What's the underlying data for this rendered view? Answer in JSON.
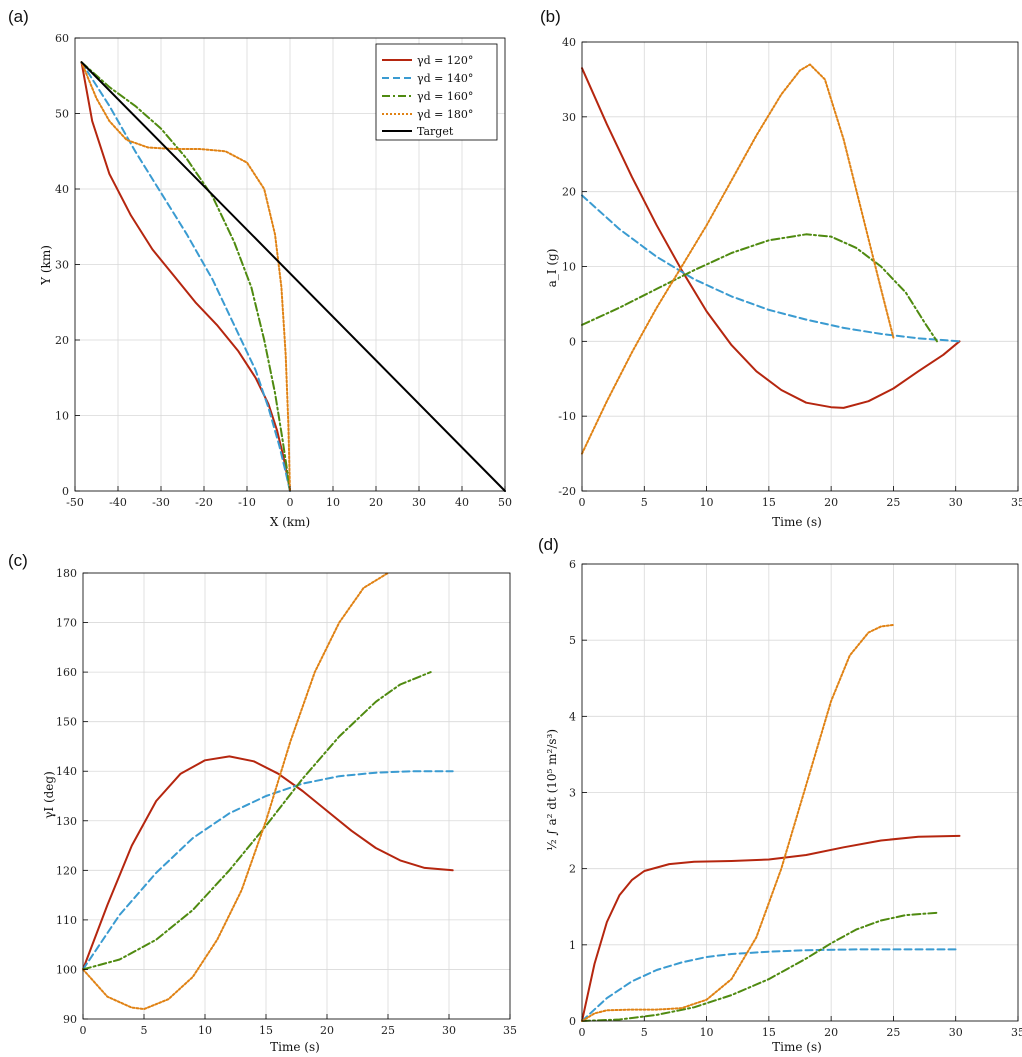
{
  "series_styles": [
    {
      "key": "g120",
      "color": "#b5260f",
      "dash": ""
    },
    {
      "key": "g140",
      "color": "#3a9bd1",
      "dash": "7,4"
    },
    {
      "key": "g160",
      "color": "#4f8a10",
      "dash": "8,3,2,3"
    },
    {
      "key": "g180",
      "color": "#e08214",
      "dash": "2,2"
    },
    {
      "key": "target",
      "color": "#000000",
      "dash": ""
    }
  ],
  "chart_data": [
    {
      "panel": "(a)",
      "type": "line",
      "xlabel": "X (km)",
      "ylabel": "Y (km)",
      "xlim": [
        -50,
        50
      ],
      "ylim": [
        0,
        60
      ],
      "xticks": [
        -50,
        -40,
        -30,
        -20,
        -10,
        0,
        10,
        20,
        30,
        40,
        50
      ],
      "yticks": [
        0,
        10,
        20,
        30,
        40,
        50,
        60
      ],
      "grid": true,
      "legend": {
        "placement": "top-right",
        "entries": [
          "γd = 120°",
          "γd = 140°",
          "γd = 160°",
          "γd = 180°",
          "Target"
        ]
      },
      "series": [
        {
          "name": "γd = 120°",
          "style": "g120",
          "points": [
            [
              -48.5,
              56.8
            ],
            [
              -46,
              49
            ],
            [
              -42,
              42
            ],
            [
              -37,
              36.5
            ],
            [
              -32,
              32
            ],
            [
              -27,
              28.5
            ],
            [
              -22,
              25
            ],
            [
              -17,
              22
            ],
            [
              -12,
              18.5
            ],
            [
              -8,
              15
            ],
            [
              -5,
              11.5
            ],
            [
              -3,
              8
            ],
            [
              -1.5,
              4.5
            ],
            [
              -0.3,
              1
            ],
            [
              0,
              0
            ]
          ]
        },
        {
          "name": "γd = 140°",
          "style": "g140",
          "points": [
            [
              -48.5,
              56.8
            ],
            [
              -42,
              51
            ],
            [
              -36,
              45
            ],
            [
              -30,
              39.5
            ],
            [
              -24,
              34
            ],
            [
              -18,
              28
            ],
            [
              -13,
              22
            ],
            [
              -8,
              16
            ],
            [
              -5,
              11
            ],
            [
              -2.5,
              6
            ],
            [
              -1,
              2.5
            ],
            [
              0,
              0
            ]
          ]
        },
        {
          "name": "γd = 160°",
          "style": "g160",
          "points": [
            [
              -48.5,
              56.8
            ],
            [
              -42,
              53.5
            ],
            [
              -36,
              51
            ],
            [
              -30,
              48
            ],
            [
              -24,
              44
            ],
            [
              -18,
              39
            ],
            [
              -13,
              33
            ],
            [
              -9,
              27
            ],
            [
              -6,
              20
            ],
            [
              -3.5,
              13
            ],
            [
              -1.8,
              7
            ],
            [
              -0.6,
              2.5
            ],
            [
              0,
              0
            ]
          ]
        },
        {
          "name": "γd = 180°",
          "style": "g180",
          "points": [
            [
              -48.5,
              56.8
            ],
            [
              -45,
              52
            ],
            [
              -42,
              49
            ],
            [
              -38,
              46.5
            ],
            [
              -33,
              45.5
            ],
            [
              -27,
              45.3
            ],
            [
              -21,
              45.3
            ],
            [
              -15,
              45
            ],
            [
              -10,
              43.5
            ],
            [
              -6,
              40
            ],
            [
              -3.5,
              34
            ],
            [
              -2,
              27
            ],
            [
              -1,
              18
            ],
            [
              -0.4,
              9
            ],
            [
              0,
              0
            ]
          ]
        },
        {
          "name": "Target",
          "style": "target",
          "points": [
            [
              -48.5,
              56.8
            ],
            [
              50,
              0
            ]
          ]
        }
      ]
    },
    {
      "panel": "(b)",
      "type": "line",
      "xlabel": "Time (s)",
      "ylabel": "a_I (g)",
      "xlim": [
        0,
        35
      ],
      "ylim": [
        -20,
        40
      ],
      "xticks": [
        0,
        5,
        10,
        15,
        20,
        25,
        30,
        35
      ],
      "yticks": [
        -20,
        -10,
        0,
        10,
        20,
        30,
        40
      ],
      "grid": true,
      "series": [
        {
          "name": "γd = 120°",
          "style": "g120",
          "points": [
            [
              0,
              36.5
            ],
            [
              2,
              29
            ],
            [
              4,
              22
            ],
            [
              6,
              15.5
            ],
            [
              8,
              9.5
            ],
            [
              10,
              4
            ],
            [
              12,
              -0.5
            ],
            [
              14,
              -4
            ],
            [
              16,
              -6.5
            ],
            [
              18,
              -8.2
            ],
            [
              20,
              -8.8
            ],
            [
              21,
              -8.9
            ],
            [
              23,
              -8
            ],
            [
              25,
              -6.3
            ],
            [
              27,
              -4
            ],
            [
              29,
              -1.8
            ],
            [
              30.3,
              0
            ]
          ]
        },
        {
          "name": "γd = 140°",
          "style": "g140",
          "points": [
            [
              0,
              19.5
            ],
            [
              3,
              15
            ],
            [
              6,
              11.3
            ],
            [
              9,
              8.3
            ],
            [
              12,
              6
            ],
            [
              15,
              4.2
            ],
            [
              18,
              2.9
            ],
            [
              21,
              1.8
            ],
            [
              24,
              1
            ],
            [
              27,
              0.4
            ],
            [
              30.3,
              0
            ]
          ]
        },
        {
          "name": "γd = 160°",
          "style": "g160",
          "points": [
            [
              0,
              2.2
            ],
            [
              3,
              4.5
            ],
            [
              6,
              7
            ],
            [
              9,
              9.5
            ],
            [
              12,
              11.8
            ],
            [
              15,
              13.5
            ],
            [
              18,
              14.3
            ],
            [
              20,
              14
            ],
            [
              22,
              12.5
            ],
            [
              24,
              10
            ],
            [
              26,
              6.5
            ],
            [
              27.5,
              2.5
            ],
            [
              28.5,
              0
            ]
          ]
        },
        {
          "name": "γd = 180°",
          "style": "g180",
          "points": [
            [
              0,
              -15
            ],
            [
              2,
              -8
            ],
            [
              4,
              -1.5
            ],
            [
              6,
              4.5
            ],
            [
              8,
              10
            ],
            [
              10,
              15.5
            ],
            [
              12,
              21.5
            ],
            [
              14,
              27.5
            ],
            [
              16,
              33
            ],
            [
              17.5,
              36.2
            ],
            [
              18.3,
              37
            ],
            [
              19.5,
              35
            ],
            [
              21,
              27
            ],
            [
              22.5,
              17
            ],
            [
              24,
              7
            ],
            [
              25,
              0.5
            ]
          ]
        }
      ]
    },
    {
      "panel": "(c)",
      "type": "line",
      "xlabel": "Time (s)",
      "ylabel": "γI (deg)",
      "xlim": [
        0,
        35
      ],
      "ylim": [
        90,
        180
      ],
      "xticks": [
        0,
        5,
        10,
        15,
        20,
        25,
        30,
        35
      ],
      "yticks": [
        90,
        100,
        110,
        120,
        130,
        140,
        150,
        160,
        170,
        180
      ],
      "grid": true,
      "series": [
        {
          "name": "γd = 120°",
          "style": "g120",
          "points": [
            [
              0,
              100
            ],
            [
              2,
              113
            ],
            [
              4,
              125
            ],
            [
              6,
              134
            ],
            [
              8,
              139.5
            ],
            [
              10,
              142.2
            ],
            [
              12,
              143
            ],
            [
              14,
              142
            ],
            [
              16,
              139.5
            ],
            [
              18,
              136
            ],
            [
              20,
              132
            ],
            [
              22,
              128
            ],
            [
              24,
              124.5
            ],
            [
              26,
              122
            ],
            [
              28,
              120.5
            ],
            [
              30.3,
              120
            ]
          ]
        },
        {
          "name": "γd = 140°",
          "style": "g140",
          "points": [
            [
              0,
              100
            ],
            [
              3,
              111
            ],
            [
              6,
              119.5
            ],
            [
              9,
              126.5
            ],
            [
              12,
              131.5
            ],
            [
              15,
              135
            ],
            [
              18,
              137.5
            ],
            [
              21,
              139
            ],
            [
              24,
              139.7
            ],
            [
              27,
              140
            ],
            [
              30.3,
              140
            ]
          ]
        },
        {
          "name": "γd = 160°",
          "style": "g160",
          "points": [
            [
              0,
              100
            ],
            [
              3,
              102
            ],
            [
              6,
              106
            ],
            [
              9,
              112
            ],
            [
              12,
              120
            ],
            [
              15,
              129
            ],
            [
              18,
              138.5
            ],
            [
              21,
              147
            ],
            [
              24,
              154
            ],
            [
              26,
              157.5
            ],
            [
              28.5,
              160
            ]
          ]
        },
        {
          "name": "γd = 180°",
          "style": "g180",
          "points": [
            [
              0,
              100
            ],
            [
              2,
              94.5
            ],
            [
              4,
              92.3
            ],
            [
              5,
              92
            ],
            [
              7,
              94
            ],
            [
              9,
              98.5
            ],
            [
              11,
              106
            ],
            [
              13,
              116
            ],
            [
              15,
              130
            ],
            [
              17,
              146
            ],
            [
              19,
              160
            ],
            [
              21,
              170
            ],
            [
              23,
              177
            ],
            [
              25,
              180
            ]
          ]
        }
      ]
    },
    {
      "panel": "(d)",
      "type": "line",
      "xlabel": "Time (s)",
      "ylabel": "½ ∫ a² dt  (10⁵ m²/s³)",
      "xlim": [
        0,
        35
      ],
      "ylim": [
        0,
        6
      ],
      "xticks": [
        0,
        5,
        10,
        15,
        20,
        25,
        30,
        35
      ],
      "yticks": [
        0,
        1,
        2,
        3,
        4,
        5,
        6
      ],
      "grid": true,
      "series": [
        {
          "name": "γd = 120°",
          "style": "g120",
          "points": [
            [
              0,
              0
            ],
            [
              1,
              0.75
            ],
            [
              2,
              1.3
            ],
            [
              3,
              1.65
            ],
            [
              4,
              1.85
            ],
            [
              5,
              1.97
            ],
            [
              7,
              2.06
            ],
            [
              9,
              2.09
            ],
            [
              12,
              2.1
            ],
            [
              15,
              2.12
            ],
            [
              18,
              2.18
            ],
            [
              21,
              2.28
            ],
            [
              24,
              2.37
            ],
            [
              27,
              2.42
            ],
            [
              30.3,
              2.43
            ]
          ]
        },
        {
          "name": "γd = 140°",
          "style": "g140",
          "points": [
            [
              0,
              0
            ],
            [
              2,
              0.3
            ],
            [
              4,
              0.52
            ],
            [
              6,
              0.67
            ],
            [
              8,
              0.77
            ],
            [
              10,
              0.84
            ],
            [
              12,
              0.88
            ],
            [
              15,
              0.91
            ],
            [
              18,
              0.93
            ],
            [
              22,
              0.94
            ],
            [
              26,
              0.94
            ],
            [
              30.3,
              0.94
            ]
          ]
        },
        {
          "name": "γd = 160°",
          "style": "g160",
          "points": [
            [
              0,
              0
            ],
            [
              3,
              0.02
            ],
            [
              6,
              0.08
            ],
            [
              9,
              0.18
            ],
            [
              12,
              0.34
            ],
            [
              15,
              0.55
            ],
            [
              18,
              0.82
            ],
            [
              20,
              1.02
            ],
            [
              22,
              1.2
            ],
            [
              24,
              1.32
            ],
            [
              26,
              1.39
            ],
            [
              28.5,
              1.42
            ]
          ]
        },
        {
          "name": "γd = 180°",
          "style": "g180",
          "points": [
            [
              0,
              0
            ],
            [
              1,
              0.1
            ],
            [
              2,
              0.14
            ],
            [
              4,
              0.15
            ],
            [
              6,
              0.15
            ],
            [
              8,
              0.17
            ],
            [
              10,
              0.28
            ],
            [
              12,
              0.55
            ],
            [
              14,
              1.1
            ],
            [
              16,
              2
            ],
            [
              18,
              3.1
            ],
            [
              20,
              4.2
            ],
            [
              21.5,
              4.8
            ],
            [
              23,
              5.1
            ],
            [
              24,
              5.18
            ],
            [
              25,
              5.2
            ]
          ]
        }
      ]
    }
  ]
}
